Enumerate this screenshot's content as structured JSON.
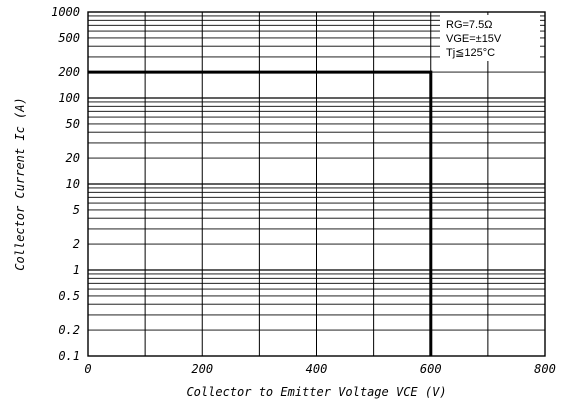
{
  "chart_data": {
    "type": "line",
    "title": "",
    "xlabel": "Collector to Emitter Voltage VCE (V)",
    "ylabel": "Collector Current Ic (A)",
    "x_scale": "linear",
    "y_scale": "log",
    "xlim": [
      0,
      800
    ],
    "ylim": [
      0.1,
      1000
    ],
    "x_ticks": [
      "0",
      "200",
      "400",
      "600",
      "800"
    ],
    "y_ticks": [
      "1000",
      "500",
      "200",
      "100",
      "50",
      "20",
      "10",
      "5",
      "2",
      "1",
      "0.5",
      "0.2",
      "0.1"
    ],
    "grid": true,
    "conditions": [
      "RG=7.5Ω",
      "VGE=±15V",
      "Tj≦125°C"
    ],
    "conditions_placement": "top-right",
    "series": [
      {
        "x": [
          0,
          600,
          600
        ],
        "y": [
          200,
          200,
          0.1
        ]
      }
    ]
  }
}
